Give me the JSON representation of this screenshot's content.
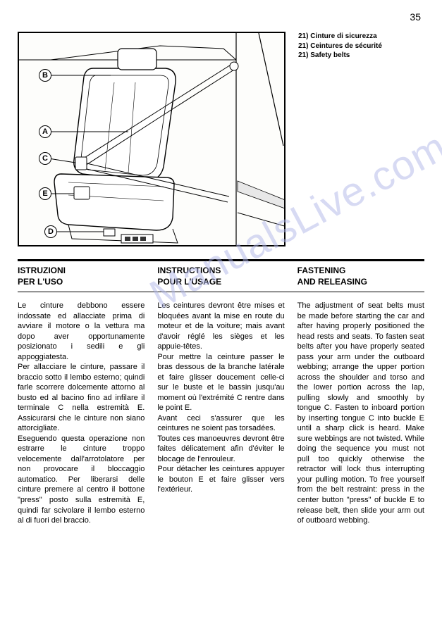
{
  "page_number": "35",
  "figure": {
    "captions": [
      "21) Cinture di sicurezza",
      "21) Ceintures de sécurité",
      "21) Safety belts"
    ],
    "callouts": [
      "A",
      "B",
      "C",
      "D",
      "E"
    ]
  },
  "watermark_text": "ManualsLive.com",
  "headings": {
    "col1_line1": "ISTRUZIONI",
    "col1_line2": "PER L'USO",
    "col2_line1": "INSTRUCTIONS",
    "col2_line2": "POUR L'USAGE",
    "col3_line1": "FASTENING",
    "col3_line2": "AND RELEASING"
  },
  "body": {
    "col1": "Le cinture debbono essere indossate ed allacciate prima di avviare il motore o la vettura ma dopo aver opportunamente posizionato i sedili e gli appoggiatesta.\nPer allacciare le cinture, passare il braccio sotto il lembo esterno; quindi farle scorrere dolcemente attorno al busto ed al bacino fino ad infilare il terminale C nella estremità E. Assicurarsi che le cinture non siano attorcigliate.\nEseguendo questa operazione non estrarre le cinture troppo velocemente dall'arrotolatore per non provocare il bloccaggio automatico. Per liberarsi delle cinture premere al centro il bottone \"press\" posto sulla estremità E, quindi far scivolare il lembo esterno al di fuori del braccio.",
    "col2": "Les ceintures devront être mises et bloquées avant la mise en route du moteur et de la voiture; mais avant d'avoir réglé les sièges et les appuie-têtes.\nPour mettre la ceinture passer le bras dessous de la branche latérale et faire glisser doucement celle-ci sur le buste et le bassin jusqu'au moment où l'extrémité C rentre dans le point E.\nAvant ceci s'assurer que les ceintures ne soient pas torsadées.\nToutes ces manoeuvres devront être faites délicatement afin d'éviter le blocage de l'enrouleur.\nPour détacher les ceintures appuyer le bouton E et faire glisser vers l'extérieur.",
    "col3": "The adjustment of seat belts must be made before starting the car and after having properly positioned the head rests and seats. To fasten seat belts after you have properly seated pass your arm under the outboard webbing; arrange the upper portion across the shoulder and torso and the lower portion across the lap, pulling slowly and smoothly by tongue C. Fasten to inboard portion by inserting tongue C into buckle E until a sharp click is heard. Make sure webbings are not twisted. While doing the sequence you must not pull too quickly otherwise the retractor will lock thus interrupting your pulling motion. To free yourself from the belt restraint: press in the center button \"press\" of buckle E to release belt, then slide your arm out of outboard webbing."
  }
}
